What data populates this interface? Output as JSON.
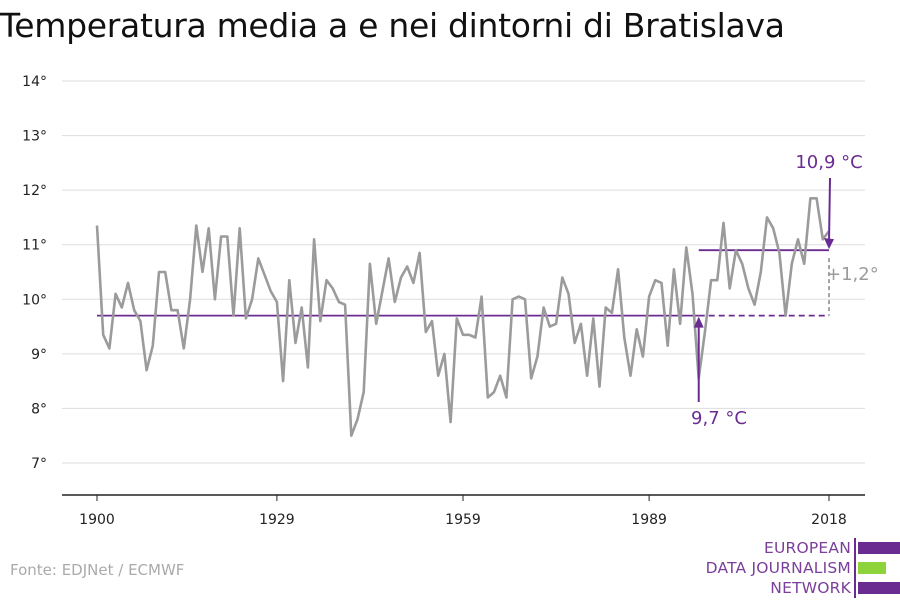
{
  "title": "Temperatura media a e nei dintorni di Bratislava",
  "source": "Fonte: EDJNet / ECMWF",
  "logo": {
    "lines": [
      "EUROPEAN",
      "DATA JOURNALISM",
      "NETWORK"
    ]
  },
  "colors": {
    "series": "#9b9b9b",
    "accent": "#6a2c91",
    "grid": "#dddddd",
    "logo_green": "#8ed23c"
  },
  "chart_data": {
    "type": "line",
    "title": "Temperatura media a e nei dintorni di Bratislava",
    "xlabel": "",
    "ylabel": "",
    "xlim": [
      1900,
      2018
    ],
    "ylim": [
      7,
      14
    ],
    "x_ticks": [
      {
        "value": 1900,
        "label": "1900"
      },
      {
        "value": 1929,
        "label": "1929"
      },
      {
        "value": 1959,
        "label": "1959"
      },
      {
        "value": 1989,
        "label": "1989"
      },
      {
        "value": 2018,
        "label": "2018"
      }
    ],
    "y_ticks": [
      {
        "value": 7,
        "label": "7°"
      },
      {
        "value": 8,
        "label": "8°"
      },
      {
        "value": 9,
        "label": "9°"
      },
      {
        "value": 10,
        "label": "10°"
      },
      {
        "value": 11,
        "label": "11°"
      },
      {
        "value": 12,
        "label": "12°"
      },
      {
        "value": 13,
        "label": "13°"
      },
      {
        "value": 14,
        "label": "14°"
      }
    ],
    "grid": true,
    "series": [
      {
        "x": [
          1900,
          1901,
          1902,
          1903,
          1904,
          1905,
          1906,
          1907,
          1908,
          1909,
          1910,
          1911,
          1912,
          1913,
          1914,
          1915,
          1916,
          1917,
          1918,
          1919,
          1920,
          1921,
          1922,
          1923,
          1924,
          1925,
          1926,
          1927,
          1928,
          1929,
          1930,
          1931,
          1932,
          1933,
          1934,
          1935,
          1936,
          1937,
          1938,
          1939,
          1940,
          1941,
          1942,
          1943,
          1944,
          1945,
          1946,
          1947,
          1948,
          1949,
          1950,
          1951,
          1952,
          1953,
          1954,
          1955,
          1956,
          1957,
          1958,
          1959,
          1960,
          1961,
          1962,
          1963,
          1964,
          1965,
          1966,
          1967,
          1968,
          1969,
          1970,
          1971,
          1972,
          1973,
          1974,
          1975,
          1976,
          1977,
          1978,
          1979,
          1980,
          1981,
          1982,
          1983,
          1984,
          1985,
          1986,
          1987,
          1988,
          1989,
          1990,
          1991,
          1992,
          1993,
          1994,
          1995,
          1996,
          1997,
          1998,
          1999,
          2000,
          2001,
          2002,
          2003,
          2004,
          2005,
          2006,
          2007,
          2008,
          2009,
          2010,
          2011,
          2012,
          2013,
          2014,
          2015,
          2016,
          2017,
          2018
        ],
        "values": [
          11.35,
          9.35,
          9.1,
          10.1,
          9.85,
          10.3,
          9.8,
          9.6,
          8.7,
          9.15,
          10.5,
          10.5,
          9.8,
          9.8,
          9.1,
          10.0,
          11.35,
          10.5,
          11.3,
          10.0,
          11.15,
          11.15,
          9.7,
          11.3,
          9.65,
          10.0,
          10.75,
          10.45,
          10.15,
          9.95,
          8.5,
          10.35,
          9.2,
          9.85,
          8.75,
          11.1,
          9.6,
          10.35,
          10.2,
          9.95,
          9.9,
          7.5,
          7.8,
          8.3,
          10.65,
          9.55,
          10.15,
          10.75,
          9.95,
          10.4,
          10.6,
          10.3,
          10.85,
          9.4,
          9.6,
          8.6,
          9.0,
          7.75,
          9.65,
          9.35,
          9.35,
          9.3,
          10.05,
          8.2,
          8.3,
          8.6,
          8.2,
          10.0,
          10.05,
          10.0,
          8.55,
          8.95,
          9.85,
          9.5,
          9.55,
          10.4,
          10.1,
          9.2,
          9.55,
          8.6,
          9.65,
          8.4,
          9.85,
          9.75,
          10.55,
          9.3,
          8.6,
          9.45,
          8.95,
          10.05,
          10.35,
          10.3,
          9.15,
          10.55,
          9.55,
          10.95,
          10.1,
          8.55,
          9.4,
          10.35,
          10.35,
          11.4,
          10.2,
          10.9,
          10.65,
          10.2,
          9.9,
          10.5,
          11.5,
          11.3,
          10.85,
          9.7,
          10.65,
          11.1,
          10.65,
          11.85,
          11.85,
          11.1,
          11.25
        ]
      }
    ],
    "reference_lines": [
      {
        "label": "9,7 °C",
        "value": 9.7,
        "x_start": 1900,
        "x_end": 2018,
        "style": "solid until 1997, dashed after"
      },
      {
        "label": "10,9 °C",
        "value": 10.9,
        "x_start": 1997,
        "x_end": 2018
      }
    ],
    "annotations": [
      {
        "text": "10,9 °C",
        "points_to": [
          2018,
          10.9
        ]
      },
      {
        "text": "9,7 °C",
        "points_to": [
          1997,
          9.7
        ]
      },
      {
        "text": "+1,2°",
        "between": [
          9.7,
          10.9
        ],
        "at_x": 2018
      }
    ]
  }
}
